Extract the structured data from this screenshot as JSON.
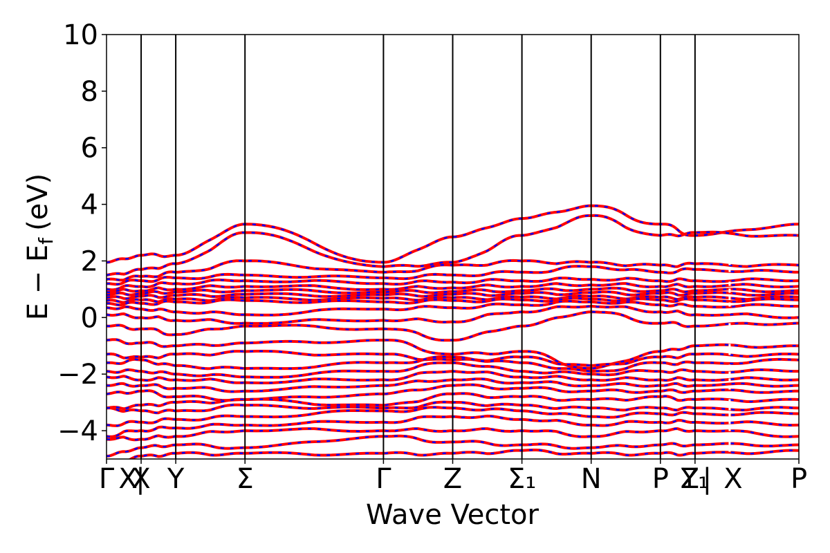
{
  "chart_data": {
    "type": "line",
    "xlabel": "Wave Vector",
    "ylabel_main": "E − E",
    "ylabel_sub": "f",
    "ylabel_unit": "(eV)",
    "ylim": [
      -5,
      10
    ],
    "yticks": [
      -4,
      -2,
      0,
      2,
      4,
      6,
      8,
      10
    ],
    "ytick_labels": [
      "−4",
      "−2",
      "0",
      "2",
      "4",
      "6",
      "8",
      "10"
    ],
    "xlim": [
      0,
      20
    ],
    "kpoint_positions": [
      0,
      1,
      2,
      4,
      8,
      10,
      12,
      14,
      16,
      17,
      20
    ],
    "kpoint_labels": [
      "Γ",
      "X",
      "Y",
      "Σ",
      "Γ",
      "Z",
      "Σ₁",
      "N",
      "P",
      "Y₁",
      "P"
    ],
    "kpoint_label_overlays": [
      {
        "at": 0.62,
        "text": "X"
      },
      {
        "at": 0.98,
        "text": "|"
      },
      {
        "at": 16.85,
        "text": "Z"
      },
      {
        "at": 17.35,
        "text": "|"
      },
      {
        "at": 18.1,
        "text": "X"
      }
    ],
    "band_break_x": 18.0,
    "series": [
      {
        "values": [
          1.95,
          2.2,
          2.2,
          3.3,
          1.95,
          2.85,
          3.5,
          3.95,
          3.3,
          2.9,
          3.3
        ]
      },
      {
        "values": [
          1.5,
          1.7,
          1.9,
          3.0,
          1.8,
          1.95,
          2.9,
          3.6,
          2.9,
          3.0,
          2.9
        ]
      },
      {
        "values": [
          1.35,
          1.45,
          1.6,
          2.0,
          1.6,
          1.85,
          2.0,
          1.95,
          1.85,
          1.9,
          1.85
        ]
      },
      {
        "values": [
          1.2,
          1.3,
          1.4,
          1.5,
          1.4,
          1.5,
          1.6,
          1.8,
          1.6,
          1.7,
          1.6
        ]
      },
      {
        "values": [
          1.0,
          1.1,
          1.2,
          1.3,
          1.2,
          1.25,
          1.3,
          1.35,
          1.3,
          1.3,
          1.3
        ]
      },
      {
        "values": [
          0.9,
          0.95,
          1.0,
          1.1,
          1.0,
          1.05,
          1.1,
          1.15,
          1.1,
          1.1,
          1.1
        ]
      },
      {
        "values": [
          0.8,
          0.85,
          0.9,
          0.95,
          0.9,
          0.92,
          0.95,
          1.0,
          0.95,
          0.95,
          0.95
        ]
      },
      {
        "values": [
          0.7,
          0.75,
          0.78,
          0.82,
          0.8,
          0.82,
          0.85,
          0.88,
          0.85,
          0.85,
          0.85
        ]
      },
      {
        "values": [
          0.6,
          0.62,
          0.65,
          0.7,
          0.68,
          0.7,
          0.72,
          0.75,
          0.72,
          0.72,
          0.72
        ]
      },
      {
        "values": [
          0.5,
          0.5,
          0.55,
          0.6,
          0.55,
          0.6,
          0.62,
          0.65,
          0.62,
          0.62,
          0.62
        ]
      },
      {
        "values": [
          0.35,
          0.3,
          0.2,
          0.1,
          0.3,
          0.35,
          0.45,
          0.55,
          0.45,
          0.4,
          0.4
        ]
      },
      {
        "values": [
          0.1,
          0.0,
          -0.1,
          -0.2,
          -0.1,
          -0.15,
          0.2,
          0.4,
          0.2,
          0.1,
          0.0
        ]
      },
      {
        "values": [
          -0.3,
          -0.4,
          -0.6,
          -0.3,
          -0.4,
          -0.8,
          -0.3,
          0.2,
          -0.2,
          -0.3,
          -0.2
        ]
      },
      {
        "values": [
          -0.8,
          -0.9,
          -1.0,
          -0.9,
          -0.8,
          -1.3,
          -1.2,
          -1.8,
          -1.2,
          -1.0,
          -1.0
        ]
      },
      {
        "values": [
          -1.3,
          -1.4,
          -1.3,
          -1.2,
          -1.3,
          -1.5,
          -1.4,
          -1.7,
          -1.4,
          -1.3,
          -1.3
        ]
      },
      {
        "values": [
          -1.6,
          -1.5,
          -1.7,
          -1.8,
          -1.6,
          -1.4,
          -1.6,
          -1.9,
          -1.6,
          -1.6,
          -1.5
        ]
      },
      {
        "values": [
          -1.9,
          -1.9,
          -2.0,
          -2.1,
          -1.9,
          -1.6,
          -1.9,
          -2.0,
          -1.9,
          -1.9,
          -1.9
        ]
      },
      {
        "values": [
          -2.1,
          -2.2,
          -2.2,
          -2.3,
          -2.2,
          -1.9,
          -2.1,
          -2.2,
          -2.2,
          -2.2,
          -2.2
        ]
      },
      {
        "values": [
          -2.4,
          -2.4,
          -2.5,
          -2.6,
          -2.4,
          -2.2,
          -2.3,
          -2.4,
          -2.4,
          -2.4,
          -2.4
        ]
      },
      {
        "values": [
          -2.7,
          -2.6,
          -2.8,
          -2.9,
          -2.7,
          -2.4,
          -2.5,
          -2.6,
          -2.6,
          -2.6,
          -2.6
        ]
      },
      {
        "values": [
          -3.2,
          -3.1,
          -3.0,
          -2.9,
          -3.1,
          -2.7,
          -2.8,
          -2.9,
          -2.8,
          -2.9,
          -2.9
        ]
      },
      {
        "values": [
          -3.2,
          -3.3,
          -3.3,
          -3.1,
          -3.2,
          -3.0,
          -3.1,
          -3.2,
          -3.2,
          -3.2,
          -3.2
        ]
      },
      {
        "values": [
          -3.8,
          -3.7,
          -3.6,
          -3.5,
          -3.3,
          -3.2,
          -3.3,
          -3.5,
          -3.4,
          -3.4,
          -3.4
        ]
      },
      {
        "values": [
          -4.2,
          -4.0,
          -3.9,
          -3.8,
          -3.7,
          -3.5,
          -3.6,
          -3.8,
          -3.7,
          -3.7,
          -3.8
        ]
      },
      {
        "values": [
          -4.3,
          -4.3,
          -4.2,
          -4.0,
          -4.0,
          -4.0,
          -4.0,
          -4.2,
          -4.0,
          -4.0,
          -4.2
        ]
      },
      {
        "values": [
          -4.9,
          -4.6,
          -4.5,
          -4.6,
          -4.2,
          -4.4,
          -4.5,
          -4.6,
          -4.5,
          -4.5,
          -4.5
        ]
      },
      {
        "values": [
          -5.2,
          -4.9,
          -4.8,
          -4.8,
          -4.8,
          -4.8,
          -4.7,
          -4.8,
          -4.8,
          -4.8,
          -4.7
        ]
      }
    ],
    "colors": {
      "band_solid": "#ff0000",
      "band_dash": "#0000ff",
      "kpoint_lines": "#000000"
    },
    "grid": false,
    "legend": "none"
  }
}
